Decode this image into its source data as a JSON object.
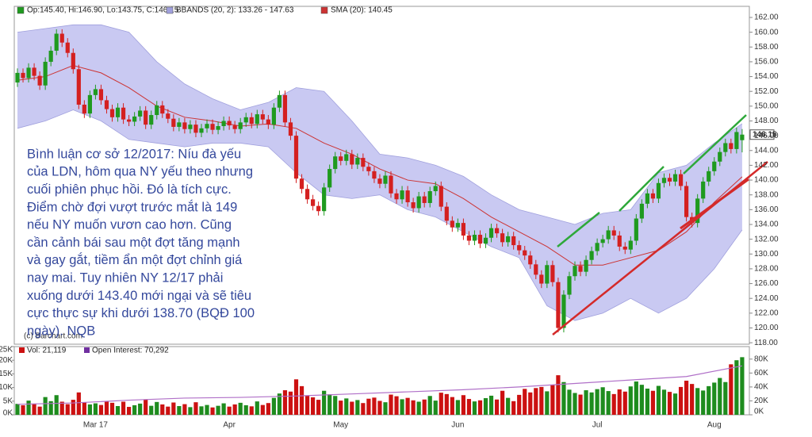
{
  "chart_data": [
    {
      "type": "candlestick",
      "legend": [
        "Op:145.40, Hi:146.90, Lo:143.75, C:146.15",
        "BBANDS (20, 2): 133.26 - 147.63",
        "SMA (20): 140.45"
      ],
      "source": "(c) Barchart.com",
      "annotation": [
        "Bình luận cơ sở 12/2017: Níu đà yếu",
        "của LDN, hôm qua NY yếu theo nhưng",
        "cuối phiên phục hồi. Đó là tích cực.",
        "Điểm chờ đợi vượt trước mắt là 149",
        "nếu NY muốn vươn cao hơn. Cũng",
        "cần cảnh bái sau một đợt tăng mạnh",
        "và gay gắt, tiềm ẩn một đợt chỉnh giá",
        "nay mai. Tuy nhiên NY 12/17 phải",
        "xuống dưới 143.40 mới ngại và sẽ tiêu",
        "cực thực sự khi dưới 138.70 (BQĐ 100",
        "ngày). NQB"
      ],
      "up_color": "#1f9a1f",
      "down_color": "#d42020",
      "grid": false,
      "ylim": [
        117.8,
        163.5
      ],
      "yticks": [
        {
          "value": 118,
          "label": "118.00"
        },
        {
          "value": 120,
          "label": "120.00"
        },
        {
          "value": 122,
          "label": "122.00"
        },
        {
          "value": 124,
          "label": "124.00"
        },
        {
          "value": 126,
          "label": "126.00"
        },
        {
          "value": 128,
          "label": "128.00"
        },
        {
          "value": 130,
          "label": "130.00"
        },
        {
          "value": 132,
          "label": "132.00"
        },
        {
          "value": 134,
          "label": "134.00"
        },
        {
          "value": 136,
          "label": "136.00"
        },
        {
          "value": 138,
          "label": "138.00"
        },
        {
          "value": 140,
          "label": "140.00"
        },
        {
          "value": 142,
          "label": "142.00"
        },
        {
          "value": 144,
          "label": "144.00"
        },
        {
          "value": 146,
          "label": "146.00"
        },
        {
          "value": 148,
          "label": "148.00"
        },
        {
          "value": 150,
          "label": "150.00"
        },
        {
          "value": 152,
          "label": "152.00"
        },
        {
          "value": 154,
          "label": "154.00"
        },
        {
          "value": 156,
          "label": "156.00"
        },
        {
          "value": 158,
          "label": "158.00"
        },
        {
          "value": 160,
          "label": "160.00"
        },
        {
          "value": 162,
          "label": "162.00"
        }
      ],
      "open": [
        153.2,
        154.5,
        153.8,
        155.2,
        154.1,
        152.8,
        156.0,
        157.5,
        159.8,
        158.6,
        157.2,
        155.0,
        150.2,
        149.0,
        151.5,
        152.3,
        150.8,
        149.6,
        148.5,
        149.8,
        148.2,
        147.9,
        148.6,
        149.4,
        147.5,
        148.8,
        150.1,
        149.0,
        148.3,
        147.2,
        147.8,
        146.9,
        147.5,
        146.4,
        147.0,
        147.6,
        146.8,
        147.3,
        148.0,
        147.4,
        146.9,
        147.8,
        148.5,
        147.6,
        148.9,
        148.2,
        147.5,
        149.8,
        151.5,
        147.8,
        146.0,
        140.2,
        138.8,
        137.4,
        136.5,
        135.8,
        139.0,
        141.5,
        143.2,
        142.6,
        143.5,
        142.1,
        143.0,
        141.8,
        141.2,
        140.2,
        139.5,
        140.6,
        138.2,
        137.4,
        138.6,
        137.0,
        136.2,
        137.8,
        136.9,
        138.5,
        139.2,
        136.4,
        134.5,
        133.6,
        134.2,
        132.5,
        131.8,
        132.6,
        131.4,
        132.2,
        133.5,
        132.8,
        131.6,
        132.4,
        131.2,
        130.5,
        129.8,
        128.6,
        127.2,
        126.0,
        128.5,
        126.2,
        120.0,
        124.5,
        127.0,
        128.4,
        127.6,
        129.2,
        130.4,
        131.5,
        132.0,
        133.2,
        132.5,
        131.0,
        130.6,
        131.8,
        134.8,
        136.8,
        138.2,
        137.5,
        139.6,
        140.3,
        139.8,
        140.8,
        139.2,
        135.0,
        134.2,
        137.5,
        139.8,
        141.2,
        142.5,
        143.8,
        145.0,
        144.2,
        145.4
      ],
      "high": [
        155.1,
        155.1,
        155.8,
        155.8,
        154.7,
        156.6,
        158.1,
        160.4,
        160.4,
        159.2,
        157.8,
        155.6,
        150.8,
        152.1,
        152.9,
        152.9,
        151.4,
        150.2,
        150.4,
        150.4,
        148.8,
        149.2,
        150.0,
        150.0,
        149.4,
        150.7,
        150.7,
        149.6,
        148.9,
        148.4,
        148.4,
        148.1,
        148.1,
        147.6,
        148.2,
        148.2,
        147.9,
        148.6,
        148.6,
        148.0,
        148.4,
        149.1,
        149.1,
        149.5,
        149.5,
        148.8,
        150.4,
        152.1,
        152.1,
        148.4,
        146.6,
        140.8,
        139.4,
        138.0,
        137.1,
        139.6,
        142.1,
        143.8,
        143.8,
        144.1,
        144.1,
        143.6,
        143.6,
        142.4,
        141.8,
        140.8,
        141.2,
        141.2,
        138.8,
        139.2,
        139.2,
        137.6,
        138.4,
        138.4,
        139.1,
        139.8,
        139.8,
        137.0,
        135.1,
        134.8,
        134.8,
        133.1,
        133.2,
        133.2,
        132.8,
        134.1,
        134.1,
        133.4,
        133.0,
        133.0,
        131.8,
        131.1,
        130.4,
        129.2,
        127.8,
        129.1,
        129.1,
        126.8,
        125.1,
        127.6,
        129.0,
        129.0,
        129.8,
        131.0,
        132.1,
        132.6,
        133.8,
        133.8,
        133.1,
        131.6,
        132.4,
        135.4,
        137.4,
        138.8,
        138.8,
        140.2,
        140.9,
        140.9,
        141.4,
        141.4,
        139.8,
        135.6,
        138.1,
        140.4,
        141.8,
        143.1,
        144.4,
        145.6,
        145.6,
        147.1,
        146.9
      ],
      "low": [
        152.6,
        153.2,
        153.2,
        153.5,
        152.2,
        152.2,
        155.4,
        156.9,
        158.0,
        156.6,
        154.4,
        149.6,
        148.4,
        148.4,
        150.9,
        150.2,
        149.0,
        147.9,
        147.9,
        147.6,
        147.3,
        147.3,
        148.0,
        146.9,
        146.9,
        148.2,
        148.4,
        147.7,
        146.6,
        146.6,
        146.3,
        146.3,
        145.8,
        145.8,
        146.4,
        146.2,
        146.2,
        146.7,
        146.8,
        146.3,
        146.3,
        147.2,
        147.0,
        147.0,
        147.6,
        146.9,
        146.9,
        149.2,
        147.2,
        145.4,
        139.6,
        138.2,
        136.8,
        135.9,
        135.2,
        135.2,
        138.4,
        140.9,
        142.0,
        142.0,
        141.5,
        141.5,
        141.2,
        140.6,
        139.6,
        138.9,
        138.9,
        137.6,
        136.8,
        136.8,
        136.4,
        135.6,
        135.6,
        136.3,
        136.3,
        137.9,
        135.8,
        133.9,
        133.0,
        133.0,
        131.9,
        131.2,
        131.2,
        130.8,
        130.8,
        131.6,
        132.2,
        131.0,
        131.0,
        130.6,
        129.9,
        129.2,
        128.0,
        126.6,
        125.4,
        125.4,
        125.6,
        119.4,
        119.4,
        123.9,
        126.4,
        127.0,
        127.0,
        128.6,
        129.8,
        130.9,
        131.4,
        131.9,
        130.4,
        130.0,
        130.0,
        131.2,
        134.2,
        136.2,
        136.9,
        136.9,
        139.0,
        139.2,
        139.2,
        138.6,
        134.4,
        133.6,
        133.6,
        136.9,
        139.2,
        140.6,
        141.9,
        143.2,
        143.6,
        143.6,
        143.75
      ],
      "close": [
        154.5,
        153.8,
        155.2,
        154.1,
        152.8,
        156.0,
        157.5,
        159.8,
        158.6,
        157.2,
        155.0,
        150.2,
        149.0,
        151.5,
        152.3,
        150.8,
        149.6,
        148.5,
        149.8,
        148.2,
        147.9,
        148.6,
        149.4,
        147.5,
        148.8,
        150.1,
        149.0,
        148.3,
        147.2,
        147.8,
        146.9,
        147.5,
        146.4,
        147.0,
        147.6,
        146.8,
        147.3,
        148.0,
        147.4,
        146.9,
        147.8,
        148.5,
        147.6,
        148.9,
        148.2,
        147.5,
        149.8,
        151.5,
        147.8,
        146.0,
        140.2,
        138.8,
        137.4,
        136.5,
        135.8,
        139.0,
        141.5,
        143.2,
        142.6,
        143.5,
        142.1,
        143.0,
        141.8,
        141.2,
        140.2,
        139.5,
        140.6,
        138.2,
        137.4,
        138.6,
        137.0,
        136.2,
        137.8,
        136.9,
        138.5,
        139.2,
        136.4,
        134.5,
        133.6,
        134.2,
        132.5,
        131.8,
        132.6,
        131.4,
        132.2,
        133.5,
        132.8,
        131.6,
        132.4,
        131.2,
        130.5,
        129.8,
        128.6,
        127.2,
        126.0,
        128.5,
        126.2,
        120.0,
        124.5,
        127.0,
        128.4,
        127.6,
        129.2,
        130.4,
        131.5,
        132.0,
        133.2,
        132.5,
        131.0,
        130.6,
        131.8,
        134.8,
        136.8,
        138.2,
        137.5,
        139.6,
        140.3,
        139.8,
        140.8,
        139.2,
        135.0,
        134.2,
        137.5,
        139.8,
        141.2,
        142.5,
        143.8,
        145.0,
        144.2,
        146.5,
        146.15
      ],
      "bbands": {
        "color": "#c9c9f2",
        "stroke": "#a0a0dd",
        "x": [
          0,
          5,
          10,
          15,
          20,
          25,
          30,
          35,
          40,
          45,
          50,
          55,
          60,
          65,
          70,
          75,
          80,
          85,
          90,
          95,
          100,
          105,
          110,
          115,
          120,
          125,
          130
        ],
        "upper": [
          160,
          160.5,
          161,
          161,
          160,
          156,
          153,
          151,
          149.5,
          150.5,
          152.5,
          152,
          148,
          143.5,
          143,
          142,
          140.5,
          138,
          136,
          135,
          134,
          135.5,
          136,
          141,
          142,
          145,
          147.63
        ],
        "lower": [
          147,
          148,
          149.5,
          148,
          145.5,
          145,
          144.5,
          145,
          145,
          144.5,
          141,
          138,
          137.5,
          138,
          136,
          135,
          133,
          131,
          129.5,
          123,
          121,
          122,
          124,
          122,
          124,
          128,
          133.26
        ]
      },
      "sma": {
        "color": "#cc3333",
        "x": [
          0,
          5,
          10,
          15,
          20,
          25,
          30,
          35,
          40,
          45,
          50,
          55,
          60,
          65,
          70,
          75,
          80,
          85,
          90,
          95,
          100,
          105,
          110,
          115,
          120,
          125,
          130
        ],
        "values": [
          153.5,
          154,
          155.5,
          154.5,
          152.5,
          150,
          148.5,
          148,
          147.3,
          147.6,
          147,
          145,
          143.5,
          141.5,
          140,
          139.5,
          137.5,
          135,
          133,
          131,
          128.5,
          128.5,
          129.5,
          130.5,
          133,
          137,
          140.45
        ]
      }
    },
    {
      "type": "bar",
      "legend": [
        "Vol: 21,119",
        "Open Interest: 70,292"
      ],
      "up_color": "#1e8c1e",
      "down_color": "#cc1111",
      "legend_colors": [
        "#cc1111",
        "#7030a0"
      ],
      "categories": [
        null,
        null,
        null,
        null,
        null,
        null,
        null,
        null,
        null,
        null,
        null,
        null,
        null,
        null,
        "Mar 17",
        null,
        null,
        null,
        null,
        null,
        null,
        null,
        null,
        null,
        null,
        null,
        null,
        null,
        null,
        null,
        null,
        null,
        null,
        null,
        null,
        null,
        null,
        null,
        "Apr",
        null,
        null,
        null,
        null,
        null,
        null,
        null,
        null,
        null,
        null,
        null,
        null,
        null,
        null,
        null,
        null,
        null,
        null,
        null,
        "May",
        null,
        null,
        null,
        null,
        null,
        null,
        null,
        null,
        null,
        null,
        null,
        null,
        null,
        null,
        null,
        null,
        null,
        null,
        null,
        null,
        "Jun",
        null,
        null,
        null,
        null,
        null,
        null,
        null,
        null,
        null,
        null,
        null,
        null,
        null,
        null,
        null,
        null,
        null,
        null,
        null,
        null,
        null,
        null,
        null,
        null,
        "Jul",
        null,
        null,
        null,
        null,
        null,
        null,
        null,
        null,
        null,
        null,
        null,
        null,
        null,
        null,
        null,
        null,
        null,
        null,
        null,
        null,
        "Aug",
        null,
        null,
        null,
        null,
        null
      ],
      "values": [
        4000,
        3500,
        5200,
        4100,
        3000,
        6500,
        5000,
        7200,
        4800,
        3900,
        5500,
        8200,
        4500,
        3800,
        4200,
        3600,
        5000,
        4400,
        3200,
        4800,
        2900,
        3500,
        4100,
        5600,
        3300,
        4700,
        3800,
        3000,
        4500,
        3200,
        3900,
        2800,
        4600,
        3100,
        3600,
        2700,
        3300,
        4200,
        3000,
        3800,
        4400,
        3500,
        3100,
        4900,
        3600,
        4300,
        6200,
        7800,
        9000,
        8500,
        13000,
        10500,
        7000,
        6400,
        5500,
        8800,
        7500,
        6900,
        5200,
        6000,
        4800,
        5400,
        4300,
        5900,
        6300,
        5100,
        4600,
        7400,
        6800,
        5700,
        6200,
        5300,
        4800,
        5600,
        6900,
        5200,
        8100,
        7600,
        6500,
        5400,
        7200,
        5800,
        4900,
        5300,
        6100,
        7000,
        5600,
        8800,
        6200,
        5000,
        7300,
        9500,
        8200,
        9800,
        10200,
        8600,
        11000,
        14500,
        12000,
        9200,
        8000,
        7400,
        9000,
        8200,
        9400,
        10100,
        8700,
        7600,
        9300,
        8500,
        10400,
        12200,
        11000,
        9600,
        8800,
        10600,
        9200,
        8400,
        7800,
        10200,
        12500,
        11300,
        9800,
        8900,
        10500,
        11800,
        13500,
        12000,
        18500,
        20000,
        21119
      ],
      "ylim": [
        0,
        25000
      ],
      "yticks": [
        {
          "value": 0,
          "label": "0K"
        },
        {
          "value": 5000,
          "label": "5K"
        },
        {
          "value": 10000,
          "label": "10K"
        },
        {
          "value": 15000,
          "label": "15K"
        },
        {
          "value": 20000,
          "label": "20K"
        },
        {
          "value": 25000,
          "label": "25K"
        }
      ],
      "y2lim": [
        0,
        98000
      ],
      "y2ticks": [
        {
          "value": 0,
          "label": "0K"
        },
        {
          "value": 20000,
          "label": "20K"
        },
        {
          "value": 40000,
          "label": "40K"
        },
        {
          "value": 60000,
          "label": "60K"
        },
        {
          "value": 80000,
          "label": "80K"
        }
      ],
      "open_interest": {
        "axis": "y2",
        "color": "#b070c8",
        "x": [
          0,
          10,
          20,
          30,
          40,
          50,
          60,
          70,
          80,
          90,
          100,
          110,
          120,
          130
        ],
        "values": [
          15000,
          17000,
          21000,
          24000,
          25000,
          27000,
          30000,
          33000,
          36000,
          40000,
          45000,
          50000,
          55000,
          70292
        ]
      }
    }
  ]
}
